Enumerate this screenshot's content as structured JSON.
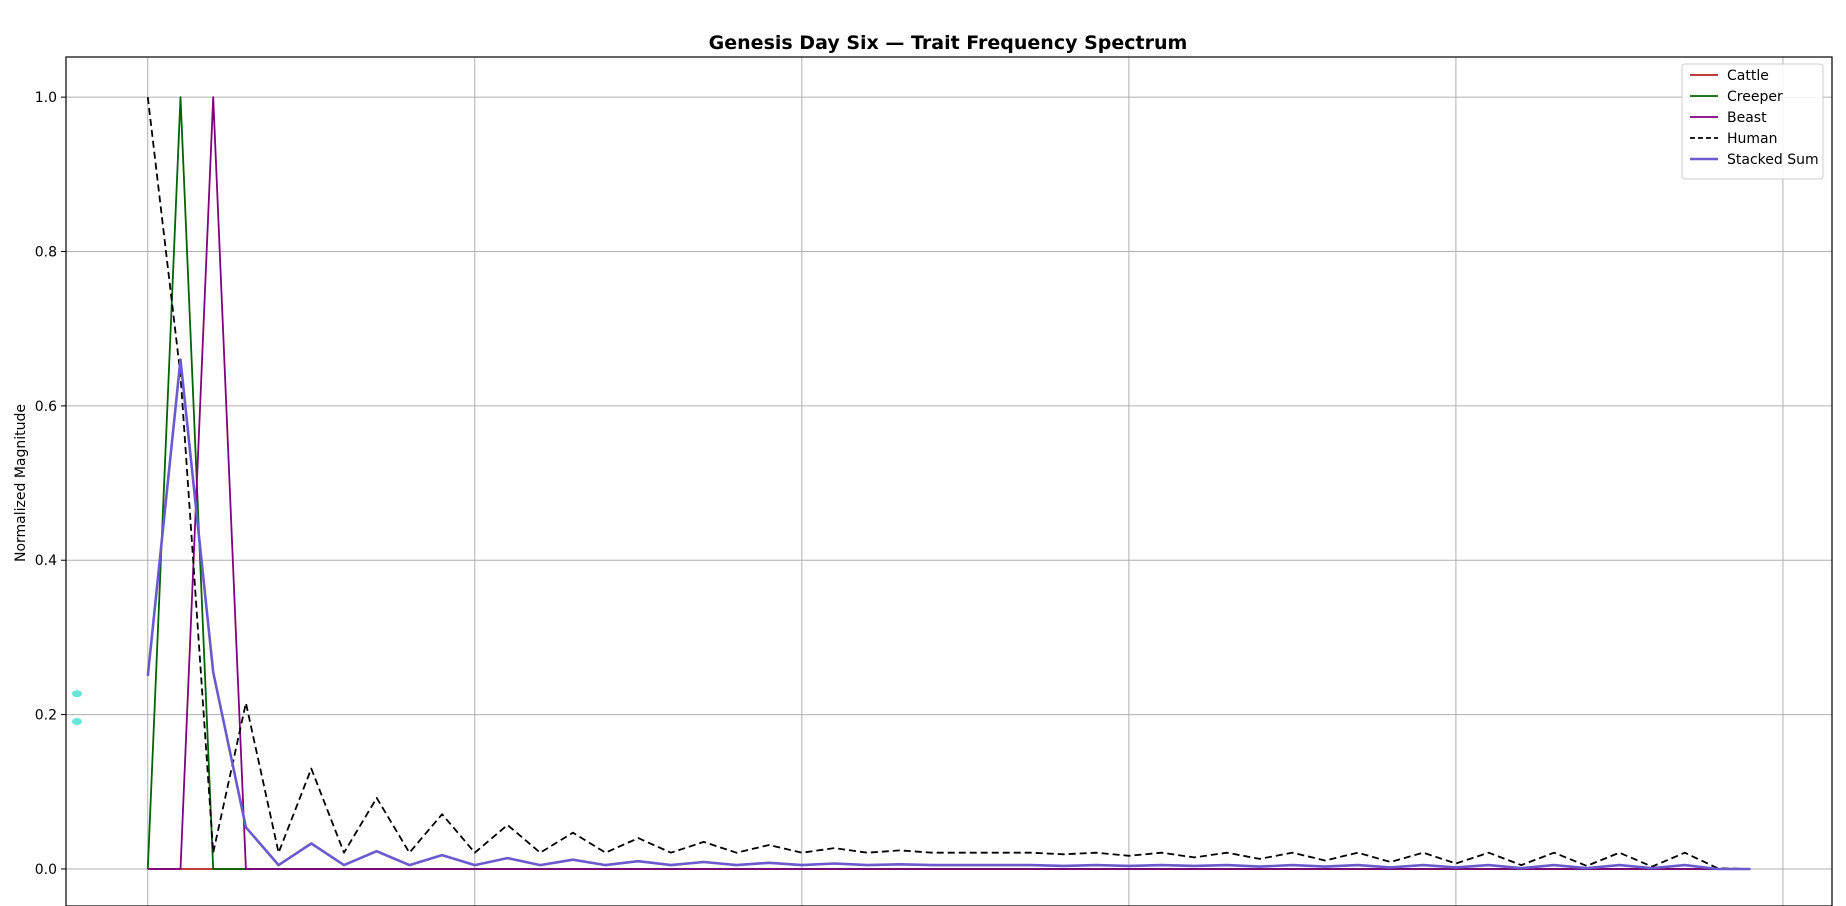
{
  "chart_data": {
    "type": "line",
    "title": "Genesis Day Six — Trait Frequency Spectrum",
    "xlabel": "",
    "ylabel": "Normalized Magnitude",
    "xlim": [
      -2.5,
      51.5
    ],
    "ylim": [
      -0.048,
      1.052
    ],
    "yticks": [
      0.0,
      0.2,
      0.4,
      0.6,
      0.8,
      1.0
    ],
    "ytick_labels": [
      "0.0",
      "0.2",
      "0.4",
      "0.6",
      "0.8",
      "1.0"
    ],
    "xgrid": [
      0,
      10,
      20,
      30,
      40,
      50
    ],
    "grid": true,
    "legend_position": "top-right",
    "series": [
      {
        "name": "Cattle",
        "color": "#b22222",
        "dash": "solid",
        "width": 1.8,
        "values": [
          0,
          0,
          0,
          0,
          0,
          0,
          0,
          0,
          0,
          0,
          0,
          0,
          0,
          0,
          0,
          0,
          0,
          0,
          0,
          0,
          0,
          0,
          0,
          0,
          0,
          0,
          0,
          0,
          0,
          0,
          0,
          0,
          0,
          0,
          0,
          0,
          0,
          0,
          0,
          0,
          0,
          0,
          0,
          0,
          0,
          0,
          0,
          0,
          0,
          0
        ]
      },
      {
        "name": "Creeper",
        "color": "#006400",
        "dash": "solid",
        "width": 1.8,
        "values": [
          0,
          1,
          0,
          0,
          0,
          0,
          0,
          0,
          0,
          0,
          0,
          0,
          0,
          0,
          0,
          0,
          0,
          0,
          0,
          0,
          0,
          0,
          0,
          0,
          0,
          0,
          0,
          0,
          0,
          0,
          0,
          0,
          0,
          0,
          0,
          0,
          0,
          0,
          0,
          0,
          0,
          0,
          0,
          0,
          0,
          0,
          0,
          0,
          0,
          0
        ]
      },
      {
        "name": "Beast",
        "color": "#800080",
        "dash": "solid",
        "width": 1.8,
        "values": [
          0,
          0,
          1,
          0,
          0,
          0,
          0,
          0,
          0,
          0,
          0,
          0,
          0,
          0,
          0,
          0,
          0,
          0,
          0,
          0,
          0,
          0,
          0,
          0,
          0,
          0,
          0,
          0,
          0,
          0,
          0,
          0,
          0,
          0,
          0,
          0,
          0,
          0,
          0,
          0,
          0,
          0,
          0,
          0,
          0,
          0,
          0,
          0,
          0,
          0
        ]
      },
      {
        "name": "Human",
        "color": "#000000",
        "dash": "dashed",
        "width": 1.8,
        "values": [
          1.0,
          0.64,
          0.021,
          0.215,
          0.021,
          0.13,
          0.021,
          0.092,
          0.021,
          0.071,
          0.021,
          0.057,
          0.021,
          0.047,
          0.021,
          0.04,
          0.021,
          0.035,
          0.021,
          0.031,
          0.021,
          0.027,
          0.021,
          0.024,
          0.021,
          0.021,
          0.021,
          0.021,
          0.019,
          0.021,
          0.017,
          0.021,
          0.015,
          0.021,
          0.013,
          0.021,
          0.011,
          0.021,
          0.009,
          0.021,
          0.007,
          0.021,
          0.005,
          0.021,
          0.004,
          0.021,
          0.003,
          0.021,
          0.001,
          0.0
        ]
      },
      {
        "name": "Stacked Sum",
        "color": "#6a5acd",
        "dash": "solid",
        "width": 2.6,
        "values": [
          0.25,
          0.66,
          0.255,
          0.054,
          0.005,
          0.033,
          0.005,
          0.023,
          0.005,
          0.018,
          0.005,
          0.014,
          0.005,
          0.012,
          0.005,
          0.01,
          0.005,
          0.009,
          0.005,
          0.008,
          0.005,
          0.007,
          0.005,
          0.006,
          0.005,
          0.005,
          0.005,
          0.005,
          0.004,
          0.005,
          0.004,
          0.005,
          0.004,
          0.005,
          0.003,
          0.005,
          0.003,
          0.005,
          0.002,
          0.005,
          0.002,
          0.005,
          0.001,
          0.005,
          0.001,
          0.005,
          0.001,
          0.005,
          0.0,
          0.0
        ]
      }
    ],
    "markers": [
      {
        "color": "#40e0d0",
        "y": 0.227
      },
      {
        "color": "#40e0d0",
        "y": 0.191
      }
    ]
  }
}
